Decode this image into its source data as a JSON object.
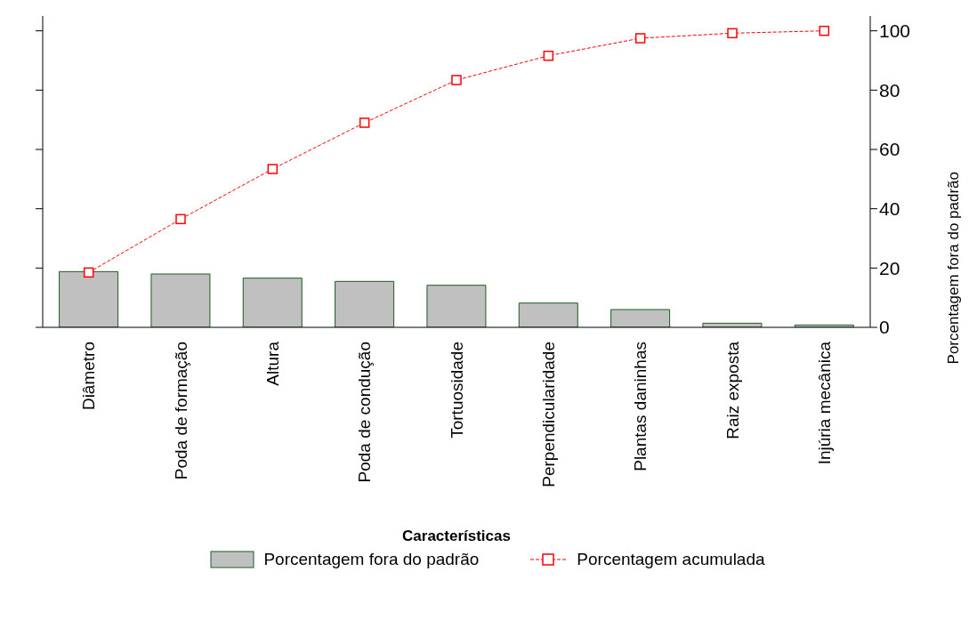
{
  "chart_data": {
    "type": "bar",
    "xlabel": "Características",
    "ylabel": "Porcentagem  fora do padrão",
    "categories": [
      "Diâmetro",
      "Poda de formação",
      "Altura",
      "Poda de condução",
      "Tortuosidade",
      "Perpendicularidade",
      "Plantas daninhas",
      "Raiz exposta",
      "Injúria mecânica"
    ],
    "series": [
      {
        "name": "Porcentagem fora do padrão",
        "color": "#c0c0c0",
        "values": [
          18.8,
          18.0,
          16.6,
          15.5,
          14.2,
          8.2,
          6.0,
          1.4,
          0.8
        ]
      },
      {
        "name": "Porcentagem acumulada",
        "type": "line",
        "color": "#ff0000",
        "values": [
          18.5,
          36.5,
          53.4,
          69.0,
          83.4,
          91.6,
          97.5,
          99.2,
          100
        ]
      }
    ],
    "ylim": [
      0,
      105
    ],
    "yticks": [
      0,
      20,
      40,
      60,
      80,
      100
    ],
    "grid": false,
    "legend": "bottom",
    "marker": "square",
    "line_style": "dashed"
  }
}
